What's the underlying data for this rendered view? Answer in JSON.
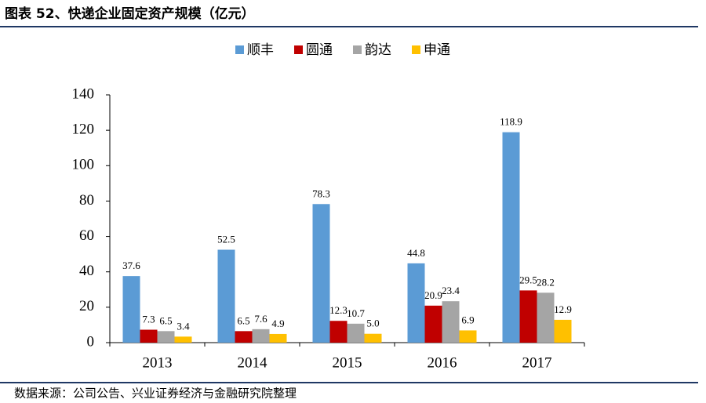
{
  "chart_data": {
    "type": "bar",
    "title": "图表 52、快递企业固定资产规模（亿元）",
    "source": "数据来源：公司公告、兴业证券经济与金融研究院整理",
    "categories": [
      "2013",
      "2014",
      "2015",
      "2016",
      "2017"
    ],
    "series": [
      {
        "name": "顺丰",
        "color": "#5b9bd5",
        "values": [
          37.6,
          52.5,
          78.3,
          44.8,
          118.9
        ],
        "value_labels": [
          "37.6",
          "52.5",
          "78.3",
          "44.8",
          "118.9"
        ]
      },
      {
        "name": "圆通",
        "color": "#c00000",
        "values": [
          7.3,
          6.5,
          12.3,
          20.9,
          29.5
        ],
        "value_labels": [
          "7.3",
          "6.5",
          "12.3",
          "20.9",
          "29.5"
        ]
      },
      {
        "name": "韵达",
        "color": "#a5a5a5",
        "values": [
          6.5,
          7.6,
          10.7,
          23.4,
          28.2
        ],
        "value_labels": [
          "6.5",
          "7.6",
          "10.7",
          "23.4",
          "28.2"
        ]
      },
      {
        "name": "申通",
        "color": "#ffc000",
        "values": [
          3.4,
          4.9,
          5.0,
          6.9,
          12.9
        ],
        "value_labels": [
          "3.4",
          "4.9",
          "5.0",
          "6.9",
          "12.9"
        ]
      }
    ],
    "ylim": [
      0,
      140
    ],
    "yticks": [
      0,
      20,
      40,
      60,
      80,
      100,
      120,
      140
    ],
    "grid": false,
    "legend": "top"
  }
}
